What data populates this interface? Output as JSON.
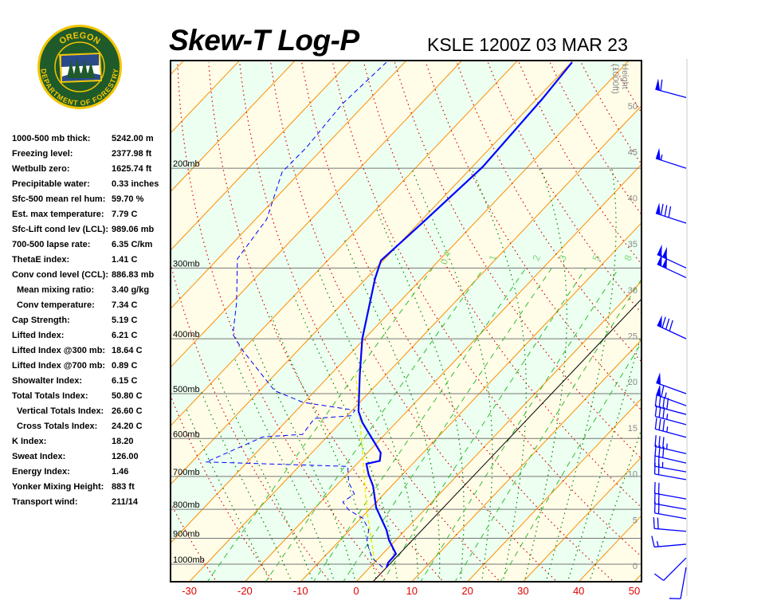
{
  "header": {
    "title": "Skew-T Log-P",
    "station": "KSLE 1200Z 03 MAR 23"
  },
  "logo": {
    "top_text": "OREGON",
    "bottom_text": "DEPARTMENT OF FORESTRY"
  },
  "stats": [
    {
      "label": "1000-500 mb thick:",
      "value": "5242.00 m",
      "indent": false
    },
    {
      "label": "Freezing level:",
      "value": "2377.98 ft",
      "indent": false
    },
    {
      "label": "Wetbulb zero:",
      "value": "1625.74 ft",
      "indent": false
    },
    {
      "label": "Precipitable water:",
      "value": "0.33 inches",
      "indent": false
    },
    {
      "label": "Sfc-500 mean rel hum:",
      "value": "59.70 %",
      "indent": false
    },
    {
      "label": "Est. max temperature:",
      "value": "7.79 C",
      "indent": false
    },
    {
      "label": "Sfc-Lift cond lev (LCL):",
      "value": "989.06 mb",
      "indent": false
    },
    {
      "label": "700-500 lapse rate:",
      "value": "6.35 C/km",
      "indent": false
    },
    {
      "label": "ThetaE index:",
      "value": "1.41 C",
      "indent": false
    },
    {
      "label": "Conv cond level (CCL):",
      "value": "886.83 mb",
      "indent": false
    },
    {
      "label": "Mean mixing ratio:",
      "value": "3.40 g/kg",
      "indent": true
    },
    {
      "label": "Conv temperature:",
      "value": "7.34 C",
      "indent": true
    },
    {
      "label": "Cap Strength:",
      "value": "5.19 C",
      "indent": false
    },
    {
      "label": "Lifted Index:",
      "value": "6.21 C",
      "indent": false
    },
    {
      "label": "Lifted Index @300 mb:",
      "value": "18.64 C",
      "indent": false
    },
    {
      "label": "Lifted Index @700 mb:",
      "value": "0.89 C",
      "indent": false
    },
    {
      "label": "Showalter Index:",
      "value": "6.15 C",
      "indent": false
    },
    {
      "label": "Total Totals Index:",
      "value": "50.80 C",
      "indent": false
    },
    {
      "label": "Vertical Totals Index:",
      "value": "26.60 C",
      "indent": true
    },
    {
      "label": "Cross Totals Index:",
      "value": "24.20 C",
      "indent": true
    },
    {
      "label": "K Index:",
      "value": "18.20",
      "indent": false
    },
    {
      "label": "Sweat Index:",
      "value": "126.00",
      "indent": false
    },
    {
      "label": "Energy Index:",
      "value": "1.46",
      "indent": false
    },
    {
      "label": "Yonker Mixing Height:",
      "value": "883 ft",
      "indent": false
    },
    {
      "label": "Transport wind:",
      "value": "211/14",
      "indent": false
    }
  ],
  "chart_data": {
    "type": "line",
    "title": "Skew-T Log-P",
    "x_scale": "skewed temperature (C)",
    "y_scale": "log pressure (mb)",
    "xlim": [
      -30,
      50
    ],
    "ylim": [
      1074,
      130
    ],
    "grid": true,
    "pressure_ticks": [
      {
        "p": 200,
        "label": "200mb"
      },
      {
        "p": 300,
        "label": "300mb"
      },
      {
        "p": 400,
        "label": "400mb"
      },
      {
        "p": 500,
        "label": "500mb"
      },
      {
        "p": 600,
        "label": "600mb"
      },
      {
        "p": 700,
        "label": "700mb"
      },
      {
        "p": 800,
        "label": "800mb"
      },
      {
        "p": 900,
        "label": "900mb"
      },
      {
        "p": 1000,
        "label": "1000mb"
      }
    ],
    "temperature_ticks": [
      "-30",
      "-20",
      "-10",
      "0",
      "10",
      "20",
      "30",
      "40",
      "50"
    ],
    "height_axis": {
      "label": "Height",
      "unit": "(1000ft)",
      "ticks": [
        "0",
        "5",
        "10",
        "15",
        "20",
        "25",
        "30",
        "35",
        "40",
        "45",
        "50"
      ]
    },
    "mixing_ratio_labels": [
      "0.4",
      "1",
      "2",
      "3",
      "5",
      "8"
    ],
    "mixing_ratio_lines": [
      0.4,
      1,
      2,
      3,
      5,
      8,
      12,
      20
    ],
    "highlight_isotherm": 3,
    "temperature_profile": [
      [
        1013,
        3.0
      ],
      [
        994,
        2.5
      ],
      [
        959,
        2.4
      ],
      [
        907,
        -1.2
      ],
      [
        870,
        -3.4
      ],
      [
        794,
        -9.1
      ],
      [
        728,
        -13.3
      ],
      [
        693,
        -16.2
      ],
      [
        665,
        -18.3
      ],
      [
        657,
        -16.4
      ],
      [
        636,
        -17.6
      ],
      [
        562,
        -26.1
      ],
      [
        537,
        -28.7
      ],
      [
        463,
        -34.7
      ],
      [
        400,
        -40.4
      ],
      [
        313,
        -48.4
      ],
      [
        291,
        -50.4
      ],
      [
        250,
        -49.4
      ],
      [
        199,
        -48.1
      ],
      [
        151,
        -49.0
      ],
      [
        130,
        -49.9
      ]
    ],
    "dewpoint_profile": [
      [
        1013,
        2.3
      ],
      [
        975,
        -1.2
      ],
      [
        914,
        -4.9
      ],
      [
        870,
        -6.6
      ],
      [
        829,
        -9.7
      ],
      [
        803,
        -13.5
      ],
      [
        777,
        -16.0
      ],
      [
        752,
        -15.3
      ],
      [
        716,
        -18.4
      ],
      [
        672,
        -21.2
      ],
      [
        660,
        -47.5
      ],
      [
        650,
        -46.5
      ],
      [
        596,
        -41.5
      ],
      [
        590,
        -34.8
      ],
      [
        553,
        -35.4
      ],
      [
        547,
        -29.3
      ],
      [
        535,
        -29.5
      ],
      [
        518,
        -40.2
      ],
      [
        494,
        -47.3
      ],
      [
        420,
        -59.8
      ],
      [
        393,
        -64.4
      ],
      [
        346,
        -69.1
      ],
      [
        289,
        -76.5
      ],
      [
        246,
        -78.0
      ],
      [
        203,
        -83.3
      ],
      [
        184,
        -83.1
      ],
      [
        154,
        -84.1
      ],
      [
        130,
        -83.3
      ]
    ],
    "parcel_profile": [
      [
        990,
        -0.1
      ],
      [
        800,
        -10.5
      ],
      [
        620,
        -22.0
      ],
      [
        463,
        -35.4
      ]
    ],
    "winds": [
      {
        "p": 150,
        "dir": 285,
        "spd": 60
      },
      {
        "p": 200,
        "dir": 288,
        "spd": 55
      },
      {
        "p": 250,
        "dir": 288,
        "spd": 80
      },
      {
        "p": 300,
        "dir": 295,
        "spd": 100
      },
      {
        "p": 312,
        "dir": 295,
        "spd": 100
      },
      {
        "p": 400,
        "dir": 295,
        "spd": 80
      },
      {
        "p": 500,
        "dir": 290,
        "spd": 50
      },
      {
        "p": 525,
        "dir": 290,
        "spd": 65
      },
      {
        "p": 544,
        "dir": 285,
        "spd": 40
      },
      {
        "p": 567,
        "dir": 285,
        "spd": 35
      },
      {
        "p": 597,
        "dir": 285,
        "spd": 35
      },
      {
        "p": 638,
        "dir": 283,
        "spd": 35
      },
      {
        "p": 663,
        "dir": 283,
        "spd": 30
      },
      {
        "p": 687,
        "dir": 280,
        "spd": 25
      },
      {
        "p": 709,
        "dir": 280,
        "spd": 20
      },
      {
        "p": 767,
        "dir": 280,
        "spd": 20
      },
      {
        "p": 800,
        "dir": 280,
        "spd": 20
      },
      {
        "p": 831,
        "dir": 280,
        "spd": 20
      },
      {
        "p": 875,
        "dir": 275,
        "spd": 20
      },
      {
        "p": 922,
        "dir": 265,
        "spd": 15
      },
      {
        "p": 975,
        "dir": 225,
        "spd": 10
      },
      {
        "p": 1013,
        "dir": 190,
        "spd": 10
      }
    ]
  },
  "colors": {
    "isotherm": "#ff8c00",
    "dry_adiabat": "#e00000",
    "moist_adiabat": "#008000",
    "mixing_ratio": "#33bb33",
    "temperature": "#0000ff",
    "dewpoint": "#0000ff",
    "parcel": "#eeee00",
    "band_a": "#fffde8",
    "band_b": "#ecfff0",
    "wind": "#0000ff"
  }
}
